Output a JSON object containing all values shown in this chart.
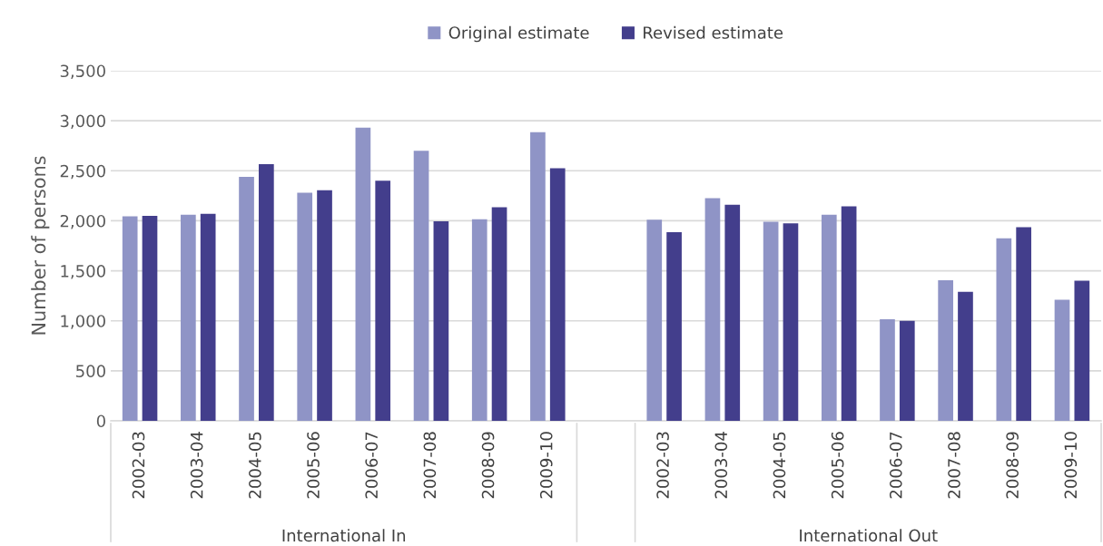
{
  "chart_data": {
    "type": "bar",
    "ylabel": "Number of persons",
    "categories": [
      "2002-03",
      "2003-04",
      "2004-05",
      "2005-06",
      "2006-07",
      "2007-08",
      "2008-09",
      "2009-10",
      null,
      "2002-03",
      "2003-04",
      "2004-05",
      "2005-06",
      "2006-07",
      "2007-08",
      "2008-09",
      "2009-10"
    ],
    "series": [
      {
        "name": "Original estimate",
        "color": "#8f94c6",
        "values": [
          2045,
          2060,
          2440,
          2280,
          2930,
          2700,
          2015,
          2885,
          null,
          2010,
          2225,
          1990,
          2060,
          1015,
          1405,
          1825,
          1210
        ]
      },
      {
        "name": "Revised estimate",
        "color": "#433e8c",
        "values": [
          2050,
          2070,
          2565,
          2305,
          2400,
          1995,
          2135,
          2525,
          null,
          1885,
          2160,
          1975,
          2145,
          1000,
          1290,
          1935,
          1400
        ]
      }
    ],
    "ylim": [
      0,
      3500
    ],
    "yticks": [
      0,
      500,
      {
        "value": 1000,
        "label": "1,000"
      },
      {
        "value": 1500,
        "label": "1,500"
      },
      {
        "value": 2000,
        "label": "2,000"
      },
      {
        "value": 2500,
        "label": "2,500"
      },
      {
        "value": 3000,
        "label": "3,000"
      },
      {
        "value": 3500,
        "label": "3,500"
      }
    ],
    "annotations": [
      "International In",
      "International Out"
    ],
    "grid": "y",
    "legend": "top"
  }
}
